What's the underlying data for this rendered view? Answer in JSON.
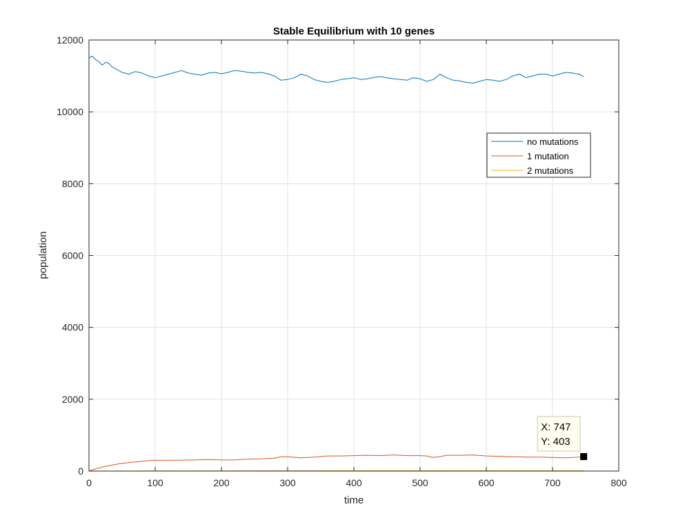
{
  "chart_data": {
    "type": "line",
    "title": "Stable Equilibrium with 10 genes",
    "xlabel": "time",
    "ylabel": "population",
    "xlim": [
      0,
      800
    ],
    "ylim": [
      0,
      12000
    ],
    "xticks": [
      0,
      100,
      200,
      300,
      400,
      500,
      600,
      700,
      800
    ],
    "yticks": [
      0,
      2000,
      4000,
      6000,
      8000,
      10000,
      12000
    ],
    "grid": true,
    "legend_position": "top-right",
    "series": [
      {
        "name": "no mutations",
        "color": "#0072BD",
        "x": [
          0,
          5,
          10,
          15,
          20,
          25,
          30,
          35,
          40,
          50,
          60,
          70,
          80,
          90,
          100,
          110,
          120,
          130,
          140,
          150,
          160,
          170,
          180,
          190,
          200,
          210,
          220,
          230,
          240,
          250,
          260,
          270,
          280,
          290,
          300,
          310,
          320,
          330,
          340,
          350,
          360,
          370,
          380,
          390,
          400,
          410,
          420,
          430,
          440,
          450,
          460,
          470,
          480,
          490,
          500,
          510,
          520,
          530,
          540,
          550,
          560,
          570,
          580,
          590,
          600,
          610,
          620,
          630,
          640,
          650,
          660,
          670,
          680,
          690,
          700,
          710,
          720,
          730,
          740,
          747
        ],
        "y": [
          11500,
          11550,
          11450,
          11400,
          11300,
          11380,
          11350,
          11250,
          11200,
          11100,
          11050,
          11120,
          11080,
          11000,
          10950,
          11000,
          11050,
          11100,
          11150,
          11080,
          11050,
          11020,
          11080,
          11100,
          11060,
          11100,
          11150,
          11130,
          11100,
          11080,
          11100,
          11060,
          11000,
          10880,
          10900,
          10950,
          11050,
          11000,
          10900,
          10850,
          10820,
          10850,
          10900,
          10920,
          10950,
          10900,
          10920,
          10960,
          10980,
          10950,
          10920,
          10900,
          10880,
          10950,
          10920,
          10850,
          10900,
          11050,
          10950,
          10880,
          10860,
          10820,
          10800,
          10850,
          10900,
          10880,
          10850,
          10900,
          11000,
          11050,
          10950,
          11000,
          11050,
          11050,
          11000,
          11050,
          11100,
          11080,
          11050,
          10980
        ]
      },
      {
        "name": "1 mutation",
        "color": "#D95319",
        "x": [
          0,
          10,
          20,
          30,
          40,
          50,
          60,
          70,
          80,
          90,
          100,
          120,
          140,
          160,
          180,
          200,
          220,
          240,
          260,
          280,
          290,
          300,
          320,
          340,
          360,
          380,
          400,
          420,
          440,
          460,
          480,
          500,
          510,
          520,
          530,
          540,
          560,
          580,
          600,
          620,
          640,
          660,
          680,
          700,
          720,
          740,
          747
        ],
        "y": [
          0,
          60,
          110,
          150,
          185,
          215,
          235,
          255,
          275,
          290,
          300,
          300,
          305,
          310,
          320,
          310,
          310,
          330,
          340,
          360,
          400,
          400,
          370,
          390,
          420,
          420,
          430,
          440,
          430,
          450,
          430,
          430,
          420,
          380,
          400,
          440,
          440,
          450,
          420,
          410,
          400,
          390,
          390,
          380,
          370,
          390,
          403
        ]
      },
      {
        "name": "2 mutations",
        "color": "#EDB120",
        "x": [
          0,
          100,
          200,
          300,
          400,
          500,
          600,
          700,
          747
        ],
        "y": [
          0,
          5,
          6,
          8,
          10,
          9,
          11,
          10,
          10
        ]
      }
    ],
    "datatip": {
      "x": 747,
      "y": 403,
      "x_text": "X: 747",
      "y_text": "Y: 403"
    }
  }
}
